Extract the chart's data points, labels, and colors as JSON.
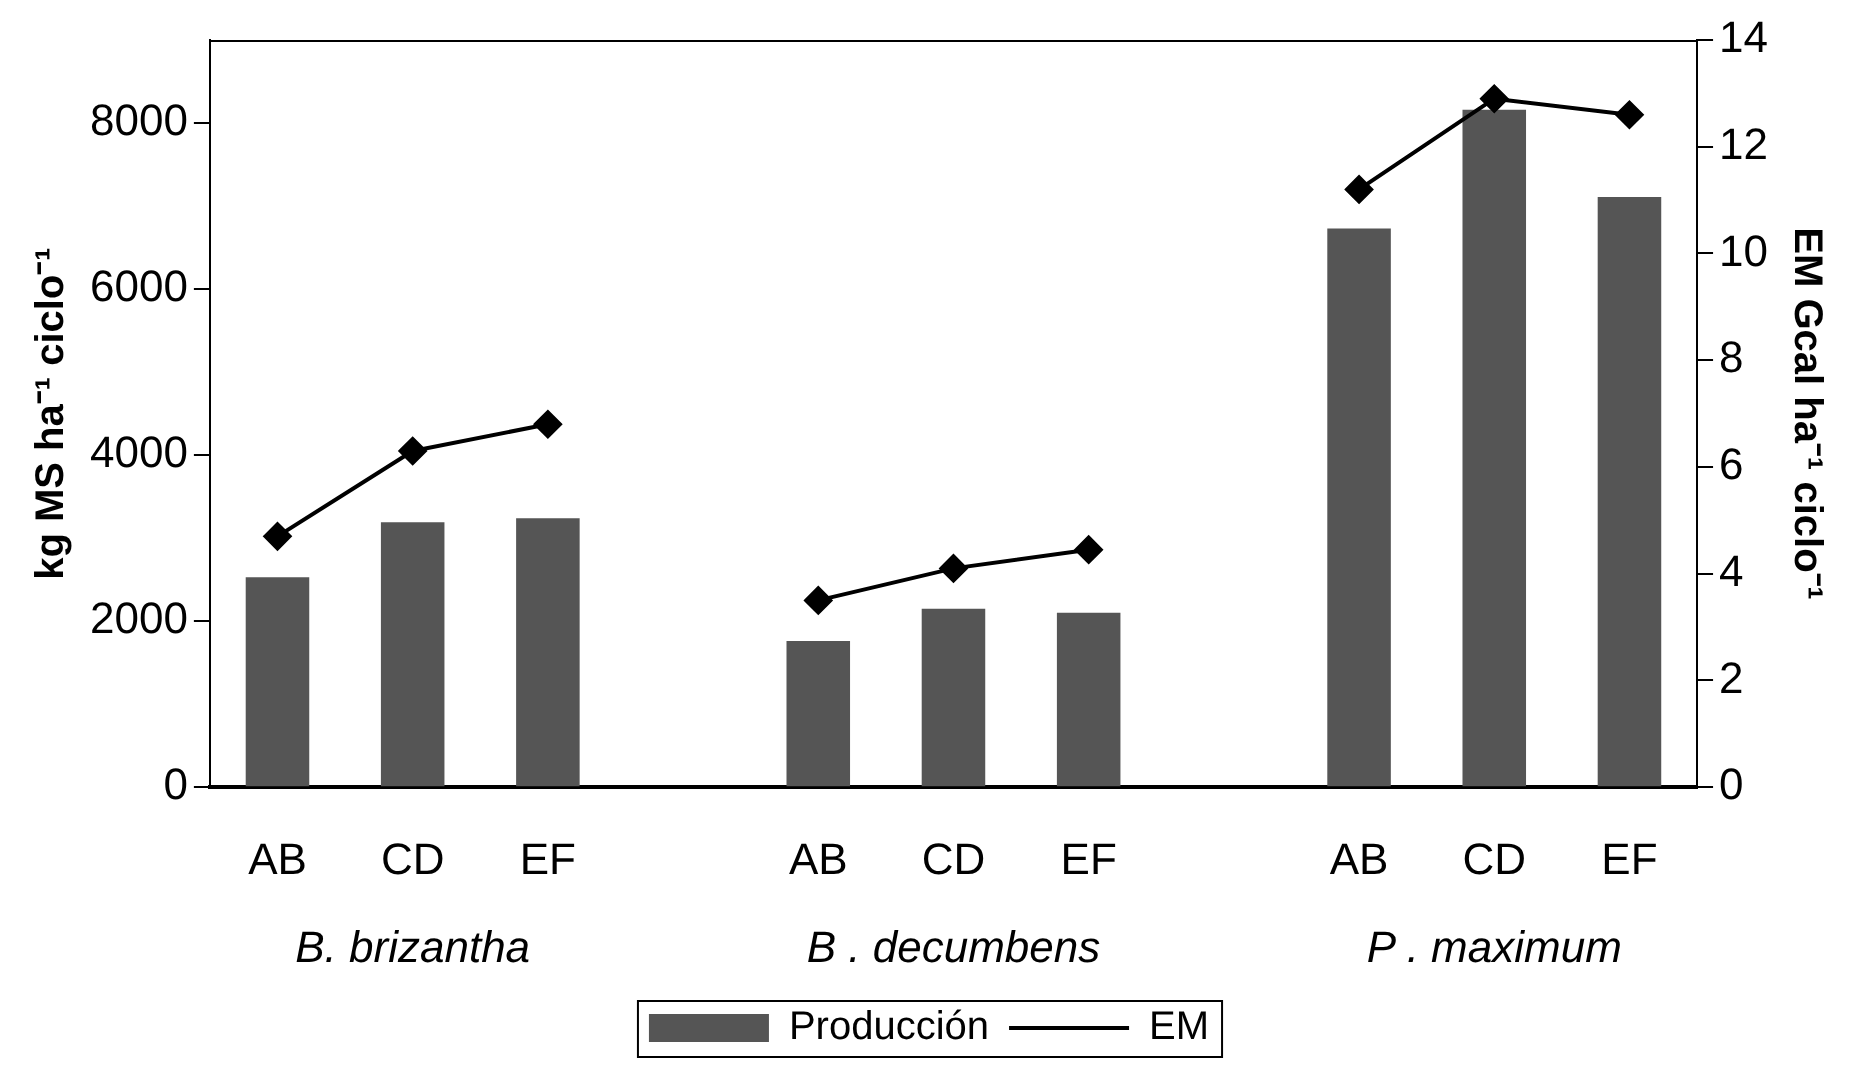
{
  "chart_data": {
    "type": "bar",
    "categories": [
      "AB",
      "CD",
      "EF",
      null,
      "AB",
      "CD",
      "EF",
      null,
      "AB",
      "CD",
      "EF"
    ],
    "series": [
      {
        "name": "Producción",
        "color": "#555555",
        "values": [
          2530,
          3190,
          3240,
          null,
          1760,
          2150,
          2100,
          null,
          6730,
          8160,
          7110
        ]
      },
      {
        "name": "EM",
        "type": "line",
        "axis": "y2",
        "color": "#000000",
        "marker": "diamond",
        "line_style": "solid",
        "values": [
          4.7,
          6.3,
          6.8,
          null,
          3.5,
          4.1,
          4.45,
          null,
          11.2,
          12.9,
          12.6
        ]
      }
    ],
    "ylabel": "kg MS ha⁻¹ ciclo⁻¹",
    "y2label": "EM Gcal ha⁻¹ ciclo⁻¹",
    "ylim": [
      0,
      9000
    ],
    "yticks": [
      0,
      2000,
      4000,
      6000,
      8000
    ],
    "y2lim": [
      0,
      14
    ],
    "y2ticks": [
      0,
      2,
      4,
      6,
      8,
      10,
      12,
      14
    ],
    "annotations": [
      "B. brizantha",
      "B . decumbens",
      "P . maximum"
    ],
    "legend": "bottom"
  }
}
